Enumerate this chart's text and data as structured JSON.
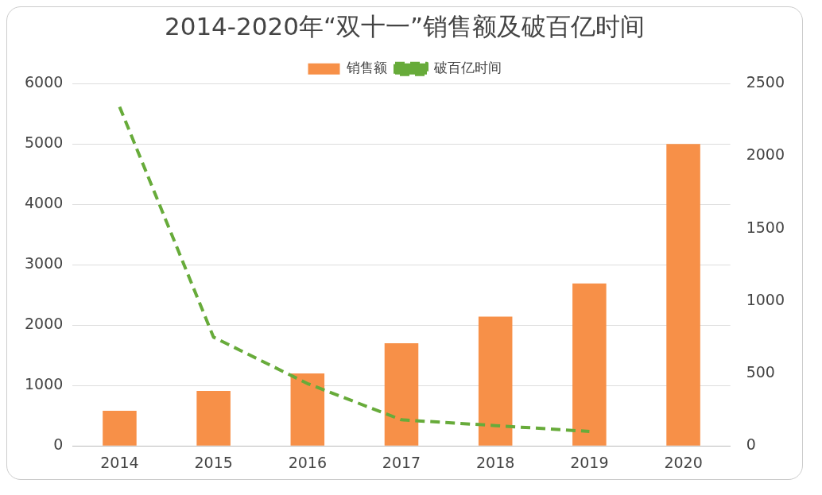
{
  "chart_data": {
    "type": "bar",
    "title": "2014-2020年“双十一”销售额及破百亿时间",
    "categories": [
      "2014",
      "2015",
      "2016",
      "2017",
      "2018",
      "2019",
      "2020"
    ],
    "series": [
      {
        "name": "销售额",
        "color": "#f79048",
        "values": [
          580,
          910,
          1200,
          1700,
          2140,
          2690,
          5000
        ]
      },
      {
        "name": "破百亿时间",
        "type": "line",
        "axis": "y2",
        "color": "#67ab3a",
        "line_style": "dashed",
        "values": [
          2340,
          750,
          430,
          180,
          140,
          100,
          null
        ]
      }
    ],
    "ylim": [
      0,
      6000
    ],
    "yticks": [
      0,
      1000,
      2000,
      3000,
      4000,
      5000,
      6000
    ],
    "y2lim": [
      0,
      2500
    ],
    "y2ticks": [
      0,
      500,
      1000,
      1500,
      2000,
      2500
    ],
    "grid": "y",
    "legend": "top",
    "marker": "none"
  }
}
